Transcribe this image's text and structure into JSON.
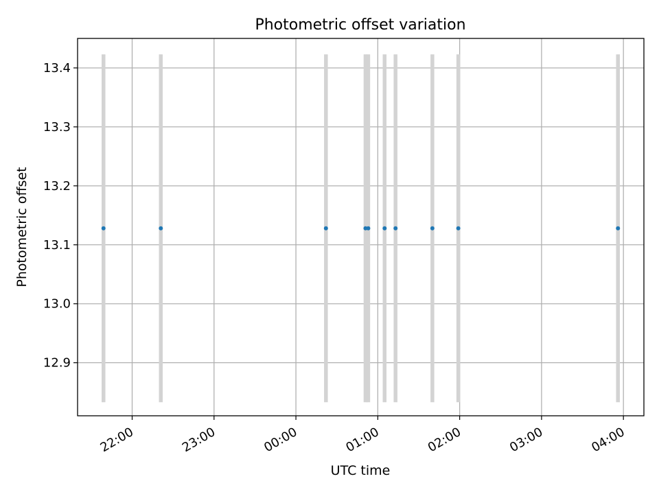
{
  "chart_data": {
    "type": "scatter",
    "title": "Photometric offset variation",
    "xlabel": "UTC time",
    "ylabel": "Photometric offset",
    "x_is_time": true,
    "xlim": [
      "21:20",
      "04:15"
    ],
    "ylim": [
      12.81,
      13.45
    ],
    "x_ticks": [
      "22:00",
      "23:00",
      "00:00",
      "01:00",
      "02:00",
      "03:00",
      "04:00"
    ],
    "y_ticks": [
      12.9,
      13.0,
      13.1,
      13.2,
      13.3,
      13.4
    ],
    "grid": true,
    "series": [
      {
        "marker_color": "#1f77b4",
        "errorbar_color": "#d3d3d3",
        "points": [
          {
            "x": "21:39",
            "y": 13.128,
            "err": 0.295
          },
          {
            "x": "22:21",
            "y": 13.128,
            "err": 0.295
          },
          {
            "x": "00:22",
            "y": 13.128,
            "err": 0.295
          },
          {
            "x": "00:51",
            "y": 13.128,
            "err": 0.295
          },
          {
            "x": "00:53",
            "y": 13.128,
            "err": 0.295
          },
          {
            "x": "01:05",
            "y": 13.128,
            "err": 0.295
          },
          {
            "x": "01:13",
            "y": 13.128,
            "err": 0.295
          },
          {
            "x": "01:40",
            "y": 13.128,
            "err": 0.295
          },
          {
            "x": "01:59",
            "y": 13.128,
            "err": 0.295
          },
          {
            "x": "03:56",
            "y": 13.128,
            "err": 0.295
          }
        ]
      }
    ]
  }
}
